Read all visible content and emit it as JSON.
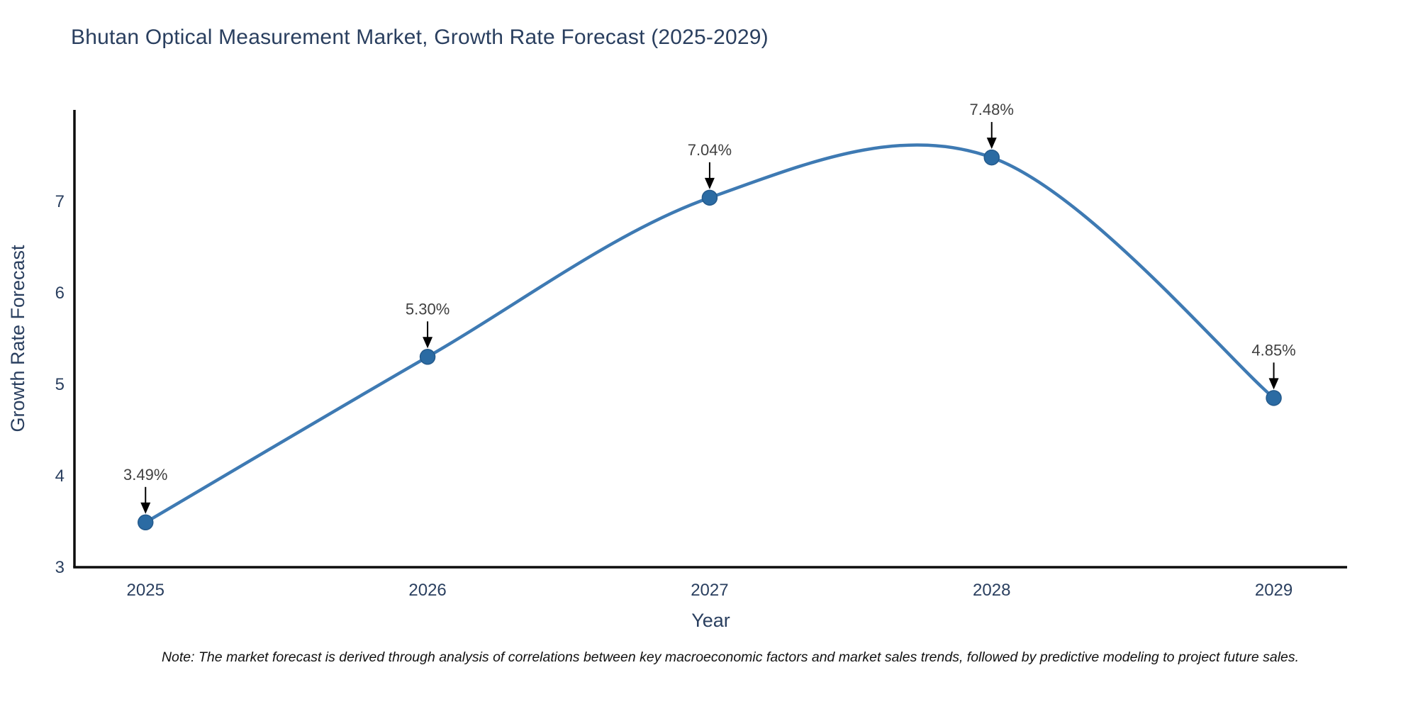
{
  "title": "Bhutan Optical Measurement Market, Growth Rate Forecast (2025-2029)",
  "note": "Note: The market forecast is derived through analysis of correlations between key macroeconomic factors and market sales trends, followed by predictive modeling to project future sales.",
  "colors": {
    "title_text": "#2a3f5f",
    "tick_text": "#2a3f5f",
    "annotation_text": "#404040",
    "axis_line": "#0d0d0d",
    "line": "#3e7ab3",
    "marker_fill": "#2b6ba3",
    "marker_edge": "#245a8c",
    "arrow": "#000000",
    "note_text": "#111111"
  },
  "chart_data": {
    "type": "line",
    "title": "Bhutan Optical Measurement Market, Growth Rate Forecast (2025-2029)",
    "x": [
      2025,
      2026,
      2027,
      2028,
      2029
    ],
    "values": [
      3.49,
      5.3,
      7.04,
      7.48,
      4.85
    ],
    "point_labels": [
      "3.49%",
      "5.30%",
      "7.04%",
      "7.48%",
      "4.85%"
    ],
    "xlabel": "Year",
    "ylabel": "Growth Rate Forecast",
    "xticks": [
      2025,
      2026,
      2027,
      2028,
      2029
    ],
    "xtick_labels": [
      "2025",
      "2026",
      "2027",
      "2028",
      "2029"
    ],
    "yticks": [
      3,
      4,
      5,
      6,
      7
    ],
    "ytick_labels": [
      "3",
      "4",
      "5",
      "6",
      "7"
    ],
    "xlim": [
      2024.748,
      2029.26
    ],
    "ylim": [
      3,
      8.0
    ],
    "grid": false,
    "legend": "none",
    "smooth": true,
    "annotation_style": "arrow-down",
    "line_shape": "spline"
  }
}
